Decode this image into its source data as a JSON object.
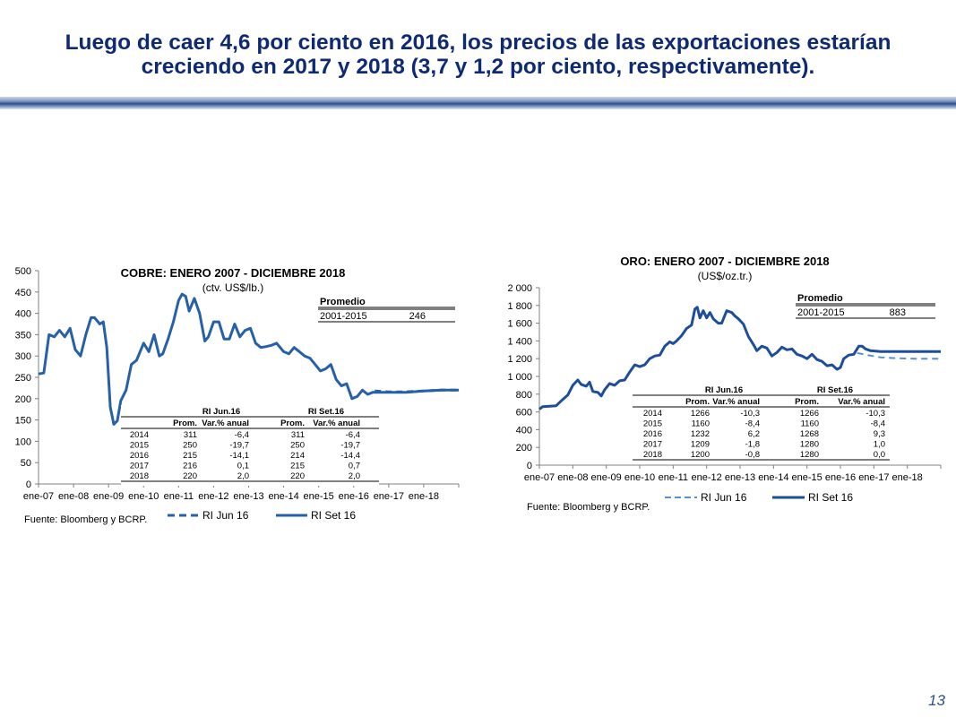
{
  "slide": {
    "title_line1": "Luego de caer 4,6 por ciento en 2016, los precios de las exportaciones estarían",
    "title_line2": "creciendo en 2017 y 2018 (3,7 y 1,2 por ciento, respectivamente).",
    "page_number": "13"
  },
  "colors": {
    "title": "#0d2a73",
    "series": "#2660a8",
    "axis": "#7f7f7f"
  },
  "chart_data": [
    {
      "type": "line",
      "title": "COBRE: ENERO 2007 - DICIEMBRE 2018",
      "subtitle": "(ctv. US$/lb.)",
      "source": "Fuente: Bloomberg y BCRP.",
      "ylim": [
        0,
        500
      ],
      "yticks": [
        "0",
        "50",
        "100",
        "150",
        "200",
        "250",
        "300",
        "350",
        "400",
        "450",
        "500"
      ],
      "xticks": [
        "ene-07",
        "ene-08",
        "ene-09",
        "ene-10",
        "ene-11",
        "ene-12",
        "ene-13",
        "ene-14",
        "ene-15",
        "ene-16",
        "ene-17",
        "ene-18"
      ],
      "x_start_year": 2007,
      "legend": [
        "RI Jun 16",
        "RI Set 16"
      ],
      "series": [
        {
          "name": "RI Jun 16",
          "style": "dashed",
          "x": [
            2016.6,
            2017.0,
            2017.5,
            2018.0,
            2018.5,
            2019.0
          ],
          "values": [
            218,
            216,
            216,
            218,
            220,
            220
          ]
        },
        {
          "name": "RI Set 16",
          "style": "solid",
          "x": [
            2007.0,
            2007.15,
            2007.3,
            2007.45,
            2007.6,
            2007.75,
            2007.9,
            2008.05,
            2008.2,
            2008.35,
            2008.5,
            2008.6,
            2008.75,
            2008.85,
            2008.95,
            2009.05,
            2009.15,
            2009.25,
            2009.35,
            2009.5,
            2009.65,
            2009.8,
            2010.0,
            2010.15,
            2010.3,
            2010.45,
            2010.55,
            2010.7,
            2010.85,
            2011.0,
            2011.1,
            2011.2,
            2011.3,
            2011.45,
            2011.6,
            2011.75,
            2011.85,
            2012.0,
            2012.15,
            2012.3,
            2012.45,
            2012.6,
            2012.75,
            2012.9,
            2013.05,
            2013.2,
            2013.35,
            2013.5,
            2013.65,
            2013.8,
            2014.0,
            2014.15,
            2014.3,
            2014.45,
            2014.6,
            2014.75,
            2014.9,
            2015.05,
            2015.2,
            2015.35,
            2015.5,
            2015.65,
            2015.8,
            2015.95,
            2016.1,
            2016.25,
            2016.4,
            2016.55,
            2016.75,
            2017.0,
            2017.5,
            2018.0,
            2018.5,
            2019.0
          ],
          "values": [
            258,
            260,
            350,
            345,
            360,
            345,
            365,
            315,
            300,
            350,
            390,
            390,
            375,
            380,
            320,
            180,
            140,
            148,
            195,
            220,
            280,
            290,
            330,
            310,
            350,
            300,
            305,
            340,
            380,
            430,
            445,
            440,
            405,
            435,
            400,
            335,
            345,
            380,
            380,
            340,
            340,
            375,
            345,
            360,
            365,
            330,
            320,
            322,
            325,
            330,
            310,
            305,
            320,
            310,
            300,
            295,
            280,
            265,
            270,
            280,
            245,
            230,
            235,
            200,
            205,
            220,
            210,
            215,
            215,
            215,
            215,
            218,
            220,
            220
          ]
        }
      ],
      "promedio": {
        "label": "Promedio",
        "period": "2001-2015",
        "value": "246"
      },
      "table": {
        "group1": "RI Jun.16",
        "group2": "RI Set.16",
        "headers": [
          "Prom.",
          "Var.% anual",
          "Prom.",
          "Var.% anual"
        ],
        "rows": [
          [
            "2014",
            "311",
            "-6,4",
            "311",
            "-6,4"
          ],
          [
            "2015",
            "250",
            "-19,7",
            "250",
            "-19,7"
          ],
          [
            "2016",
            "215",
            "-14,1",
            "214",
            "-14,4"
          ],
          [
            "2017",
            "216",
            "0,1",
            "215",
            "0,7"
          ],
          [
            "2018",
            "220",
            "2,0",
            "220",
            "2,0"
          ]
        ]
      }
    },
    {
      "type": "line",
      "title": "ORO: ENERO 2007 - DICIEMBRE 2018",
      "subtitle": "(US$/oz.tr.)",
      "source": "Fuente: Bloomberg y BCRP.",
      "ylim": [
        0,
        2000
      ],
      "yticks": [
        "0",
        "200",
        "400",
        "600",
        "800",
        "1 000",
        "1 200",
        "1 400",
        "1 600",
        "1 800",
        "2 000"
      ],
      "xticks": [
        "ene-07",
        "ene-08",
        "ene-09",
        "ene-10",
        "ene-11",
        "ene-12",
        "ene-13",
        "ene-14",
        "ene-15",
        "ene-16",
        "ene-17",
        "ene-18"
      ],
      "x_start_year": 2007,
      "legend": [
        "RI Jun 16",
        "RI Set 16"
      ],
      "series": [
        {
          "name": "RI Jun 16",
          "style": "dashed",
          "x": [
            2016.5,
            2016.8,
            2017.2,
            2017.7,
            2018.2,
            2018.7,
            2019.0
          ],
          "values": [
            1265,
            1240,
            1215,
            1205,
            1200,
            1200,
            1200
          ]
        },
        {
          "name": "RI Set 16",
          "style": "solid",
          "x": [
            2007.0,
            2007.1,
            2007.3,
            2007.5,
            2007.7,
            2007.85,
            2008.0,
            2008.15,
            2008.25,
            2008.4,
            2008.5,
            2008.6,
            2008.75,
            2008.85,
            2008.95,
            2009.1,
            2009.25,
            2009.4,
            2009.55,
            2009.7,
            2009.85,
            2010.0,
            2010.15,
            2010.3,
            2010.45,
            2010.6,
            2010.75,
            2010.9,
            2011.0,
            2011.1,
            2011.25,
            2011.4,
            2011.55,
            2011.65,
            2011.72,
            2011.8,
            2011.9,
            2012.0,
            2012.1,
            2012.2,
            2012.35,
            2012.45,
            2012.6,
            2012.75,
            2012.85,
            2012.95,
            2013.1,
            2013.25,
            2013.4,
            2013.5,
            2013.65,
            2013.8,
            2013.95,
            2014.1,
            2014.25,
            2014.4,
            2014.55,
            2014.7,
            2014.85,
            2015.0,
            2015.15,
            2015.3,
            2015.45,
            2015.6,
            2015.75,
            2015.9,
            2016.0,
            2016.1,
            2016.25,
            2016.4,
            2016.55,
            2016.65,
            2016.75,
            2016.9,
            2017.2,
            2017.7,
            2018.2,
            2018.7,
            2019.0
          ],
          "values": [
            630,
            660,
            665,
            670,
            740,
            790,
            900,
            960,
            910,
            890,
            935,
            830,
            820,
            780,
            850,
            920,
            900,
            950,
            960,
            1050,
            1130,
            1110,
            1130,
            1200,
            1230,
            1240,
            1340,
            1390,
            1370,
            1400,
            1460,
            1540,
            1580,
            1760,
            1780,
            1660,
            1740,
            1660,
            1720,
            1650,
            1600,
            1600,
            1740,
            1720,
            1680,
            1650,
            1590,
            1450,
            1360,
            1290,
            1340,
            1320,
            1230,
            1270,
            1330,
            1300,
            1310,
            1250,
            1230,
            1200,
            1250,
            1190,
            1170,
            1120,
            1130,
            1080,
            1100,
            1200,
            1240,
            1250,
            1340,
            1340,
            1310,
            1290,
            1280,
            1280,
            1280,
            1280,
            1280
          ]
        }
      ],
      "promedio": {
        "label": "Promedio",
        "period": "2001-2015",
        "value": "883"
      },
      "table": {
        "group1": "RI Jun.16",
        "group2": "RI Set.16",
        "headers": [
          "Prom.",
          "Var.% anual",
          "Prom.",
          "Var.% anual"
        ],
        "rows": [
          [
            "2014",
            "1266",
            "-10,3",
            "1266",
            "-10,3"
          ],
          [
            "2015",
            "1160",
            "-8,4",
            "1160",
            "-8,4"
          ],
          [
            "2016",
            "1232",
            "6,2",
            "1268",
            "9,3"
          ],
          [
            "2017",
            "1209",
            "-1,8",
            "1280",
            "1,0"
          ],
          [
            "2018",
            "1200",
            "-0,8",
            "1280",
            "0,0"
          ]
        ]
      }
    }
  ]
}
